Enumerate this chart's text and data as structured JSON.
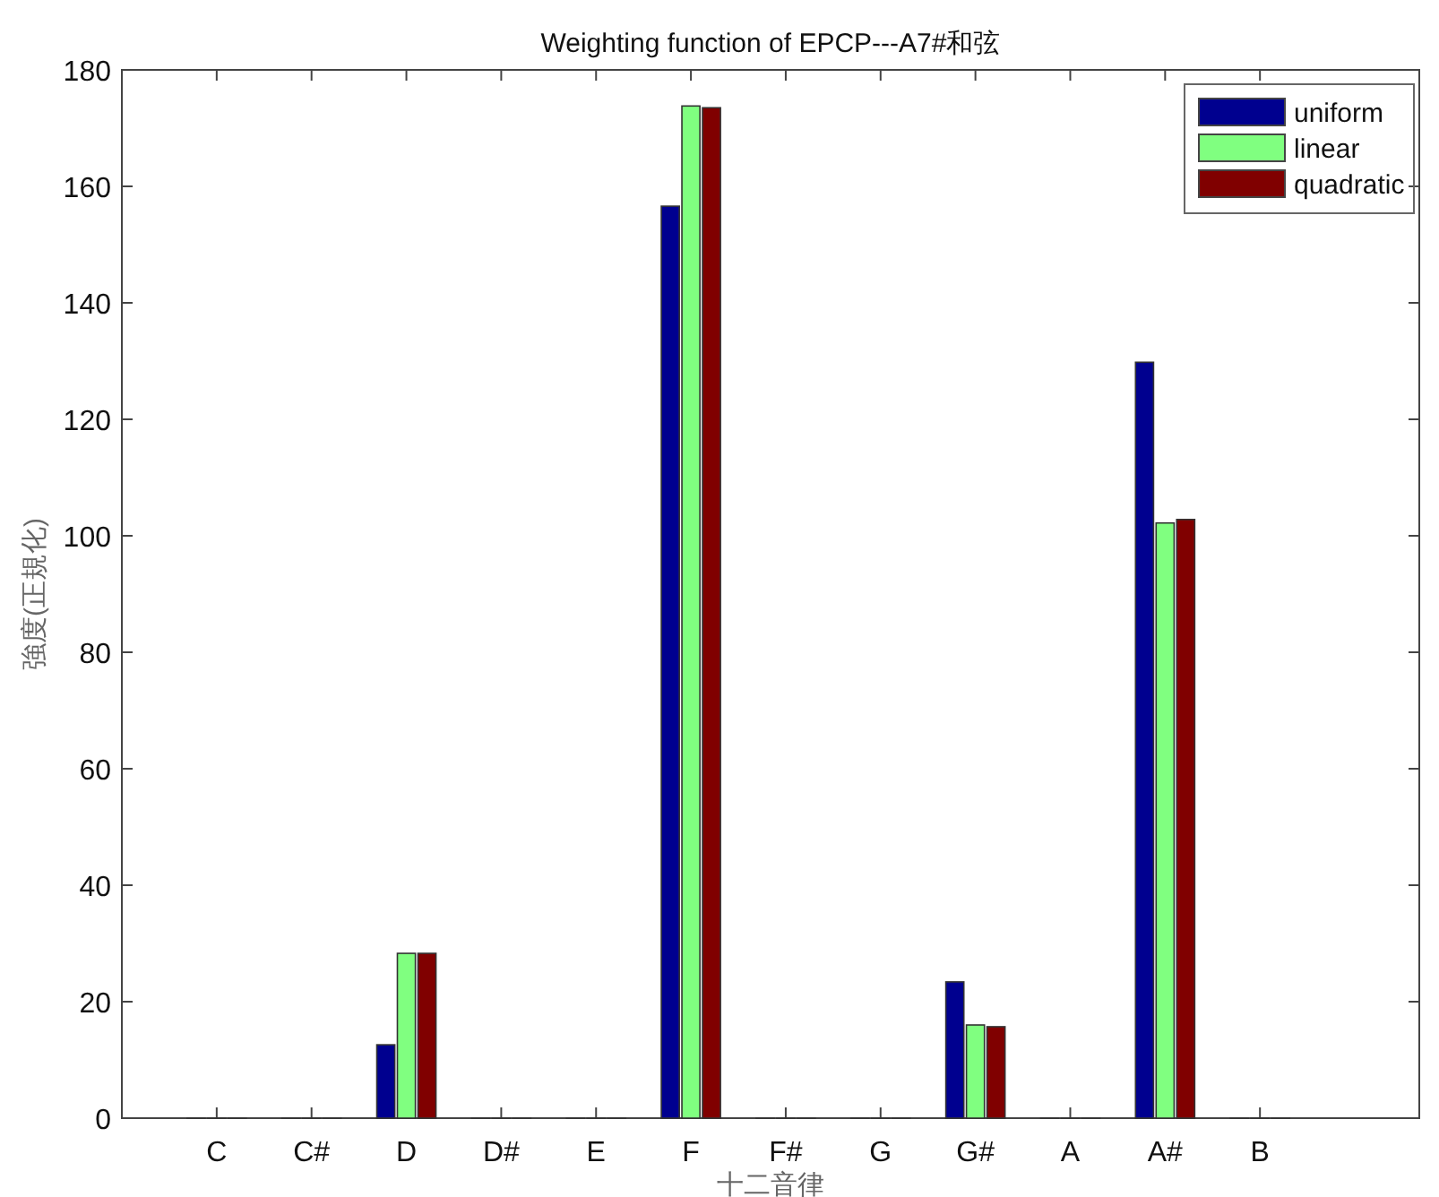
{
  "chart_data": {
    "type": "bar",
    "title": "Weighting function of EPCP---A7#和弦",
    "xlabel": "十二音律",
    "ylabel": "強度(正規化)",
    "categories": [
      "C",
      "C#",
      "D",
      "D#",
      "E",
      "F",
      "F#",
      "G",
      "G#",
      "A",
      "A#",
      "B"
    ],
    "series": [
      {
        "name": "uniform",
        "color": "#00008f",
        "values": [
          0,
          0,
          12.6,
          0,
          0,
          156.6,
          0,
          0,
          23.4,
          0,
          129.8,
          0
        ]
      },
      {
        "name": "linear",
        "color": "#80ff80",
        "values": [
          0,
          0,
          28.3,
          0,
          0,
          173.8,
          0,
          0,
          16,
          0,
          102.2,
          0
        ]
      },
      {
        "name": "quadratic",
        "color": "#800000",
        "values": [
          0,
          0,
          28.3,
          0,
          0,
          173.5,
          0,
          0,
          15.7,
          0,
          102.8,
          0
        ]
      }
    ],
    "ylim": [
      0,
      180
    ],
    "yticks": [
      0,
      20,
      40,
      60,
      80,
      100,
      120,
      140,
      160,
      180
    ],
    "grid": false,
    "legend": "top right"
  }
}
